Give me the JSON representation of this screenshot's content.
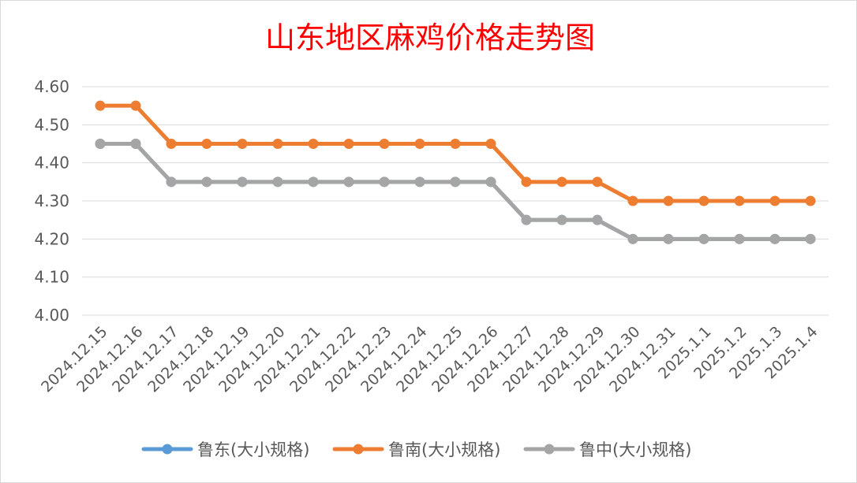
{
  "chart_data": {
    "type": "line",
    "title": "山东地区麻鸡价格走势图",
    "categories": [
      "2024.12.15",
      "2024.12.16",
      "2024.12.17",
      "2024.12.18",
      "2024.12.19",
      "2024.12.20",
      "2024.12.21",
      "2024.12.22",
      "2024.12.23",
      "2024.12.24",
      "2024.12.25",
      "2024.12.26",
      "2024.12.27",
      "2024.12.28",
      "2024.12.29",
      "2024.12.30",
      "2024.12.31",
      "2025.1.1",
      "2025.1.2",
      "2025.1.3",
      "2025.1.4"
    ],
    "y_ticks": [
      "4.00",
      "4.10",
      "4.20",
      "4.30",
      "4.40",
      "4.50",
      "4.60"
    ],
    "ylim": [
      4.0,
      4.6
    ],
    "grid": true,
    "legend_position": "bottom",
    "series": [
      {
        "name": "鲁东(大小规格)",
        "color": "#5b9bd5",
        "values": [
          4.45,
          4.45,
          4.35,
          4.35,
          4.35,
          4.35,
          4.35,
          4.35,
          4.35,
          4.35,
          4.35,
          4.35,
          4.25,
          4.25,
          4.25,
          4.2,
          4.2,
          4.2,
          4.2,
          4.2,
          4.2
        ]
      },
      {
        "name": "鲁南(大小规格)",
        "color": "#ed7d31",
        "values": [
          4.55,
          4.55,
          4.45,
          4.45,
          4.45,
          4.45,
          4.45,
          4.45,
          4.45,
          4.45,
          4.45,
          4.45,
          4.35,
          4.35,
          4.35,
          4.3,
          4.3,
          4.3,
          4.3,
          4.3,
          4.3
        ]
      },
      {
        "name": "鲁中(大小规格)",
        "color": "#a5a5a5",
        "values": [
          4.45,
          4.45,
          4.35,
          4.35,
          4.35,
          4.35,
          4.35,
          4.35,
          4.35,
          4.35,
          4.35,
          4.35,
          4.25,
          4.25,
          4.25,
          4.2,
          4.2,
          4.2,
          4.2,
          4.2,
          4.2
        ]
      }
    ],
    "title_color": "#ff0000"
  }
}
